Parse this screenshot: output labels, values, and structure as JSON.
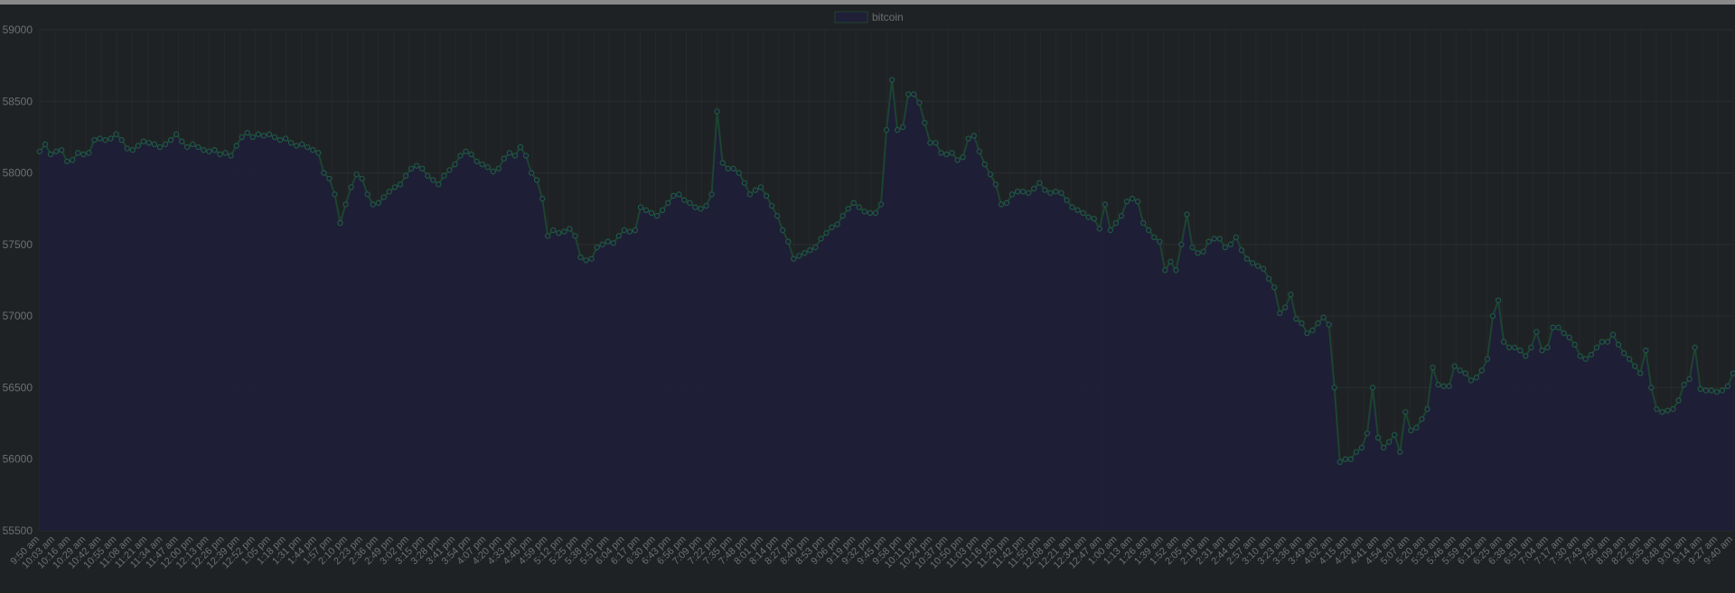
{
  "colors": {
    "background": "#1f2224",
    "fill": "#1f1f38",
    "line": "#1c4430",
    "point": "#1f5a3e",
    "grid": "#2b2e31",
    "text": "#6d6f71"
  },
  "chart_data": {
    "type": "area",
    "title": "",
    "xlabel": "",
    "ylabel": "",
    "legend": {
      "position": "top-center",
      "entries": [
        "bitcoin"
      ]
    },
    "grid": true,
    "ylim": [
      55500,
      59000
    ],
    "yticks": [
      55500,
      56000,
      56500,
      57000,
      57500,
      58000,
      58500,
      59000
    ],
    "x_tick_labels": [
      "9:50 am",
      "10:03 am",
      "10:16 am",
      "10:29 am",
      "10:42 am",
      "10:55 am",
      "11:08 am",
      "11:21 am",
      "11:34 am",
      "11:47 am",
      "12:00 pm",
      "12:13 pm",
      "12:26 pm",
      "12:39 pm",
      "12:52 pm",
      "1:05 pm",
      "1:18 pm",
      "1:31 pm",
      "1:44 pm",
      "1:57 pm",
      "2:10 pm",
      "2:23 pm",
      "2:36 pm",
      "2:49 pm",
      "3:02 pm",
      "3:15 pm",
      "3:28 pm",
      "3:41 pm",
      "3:54 pm",
      "4:07 pm",
      "4:20 pm",
      "4:33 pm",
      "4:46 pm",
      "4:59 pm",
      "5:12 pm",
      "5:25 pm",
      "5:38 pm",
      "5:51 pm",
      "6:04 pm",
      "6:17 pm",
      "6:30 pm",
      "6:43 pm",
      "6:56 pm",
      "7:09 pm",
      "7:22 pm",
      "7:35 pm",
      "7:48 pm",
      "8:01 pm",
      "8:14 pm",
      "8:27 pm",
      "8:40 pm",
      "8:53 pm",
      "9:06 pm",
      "9:19 pm",
      "9:32 pm",
      "9:45 pm",
      "9:58 pm",
      "10:11 pm",
      "10:24 pm",
      "10:37 pm",
      "10:50 pm",
      "11:03 pm",
      "11:16 pm",
      "11:29 pm",
      "11:42 pm",
      "11:55 pm",
      "12:08 am",
      "12:21 am",
      "12:34 am",
      "12:47 am",
      "1:00 am",
      "1:13 am",
      "1:26 am",
      "1:39 am",
      "1:52 am",
      "2:05 am",
      "2:18 am",
      "2:31 am",
      "2:44 am",
      "2:57 am",
      "3:10 am",
      "3:23 am",
      "3:36 am",
      "3:49 am",
      "4:02 am",
      "4:15 am",
      "4:28 am",
      "4:41 am",
      "4:54 am",
      "5:07 am",
      "5:20 am",
      "5:33 am",
      "5:46 am",
      "5:59 am",
      "6:12 am",
      "6:25 am",
      "6:38 am",
      "6:51 am",
      "7:04 am",
      "7:17 am",
      "7:30 am",
      "7:43 am",
      "7:56 am",
      "8:09 am",
      "8:22 am",
      "8:35 am",
      "8:48 am",
      "9:01 am",
      "9:14 am",
      "9:27 am",
      "9:40 am"
    ],
    "series": [
      {
        "name": "bitcoin",
        "values": [
          58150,
          58200,
          58130,
          58150,
          58160,
          58080,
          58090,
          58140,
          58130,
          58140,
          58230,
          58240,
          58230,
          58240,
          58270,
          58230,
          58170,
          58160,
          58190,
          58220,
          58210,
          58200,
          58180,
          58200,
          58230,
          58270,
          58220,
          58180,
          58200,
          58180,
          58160,
          58150,
          58160,
          58130,
          58140,
          58120,
          58190,
          58250,
          58280,
          58250,
          58270,
          58260,
          58270,
          58250,
          58230,
          58240,
          58210,
          58190,
          58200,
          58180,
          58160,
          58140,
          58000,
          57960,
          57850,
          57650,
          57780,
          57900,
          57990,
          57960,
          57850,
          57780,
          57790,
          57830,
          57870,
          57900,
          57920,
          57980,
          58030,
          58050,
          58030,
          57980,
          57950,
          57920,
          57980,
          58020,
          58060,
          58120,
          58150,
          58130,
          58080,
          58060,
          58040,
          58010,
          58030,
          58100,
          58140,
          58120,
          58180,
          58120,
          58000,
          57950,
          57820,
          57560,
          57600,
          57580,
          57590,
          57610,
          57560,
          57410,
          57390,
          57400,
          57480,
          57500,
          57520,
          57510,
          57560,
          57600,
          57590,
          57600,
          57760,
          57740,
          57720,
          57700,
          57740,
          57790,
          57840,
          57850,
          57810,
          57790,
          57760,
          57750,
          57770,
          57850,
          58430,
          58070,
          58030,
          58030,
          58000,
          57930,
          57850,
          57880,
          57900,
          57840,
          57770,
          57700,
          57600,
          57520,
          57400,
          57420,
          57440,
          57460,
          57480,
          57540,
          57580,
          57620,
          57640,
          57700,
          57750,
          57790,
          57760,
          57730,
          57720,
          57720,
          57780,
          58300,
          58650,
          58300,
          58320,
          58550,
          58550,
          58490,
          58350,
          58210,
          58210,
          58140,
          58130,
          58140,
          58090,
          58110,
          58240,
          58260,
          58150,
          58060,
          57990,
          57920,
          57780,
          57790,
          57850,
          57870,
          57870,
          57860,
          57890,
          57930,
          57880,
          57860,
          57870,
          57860,
          57810,
          57760,
          57740,
          57720,
          57690,
          57680,
          57610,
          57780,
          57600,
          57650,
          57700,
          57800,
          57820,
          57800,
          57650,
          57600,
          57550,
          57520,
          57320,
          57380,
          57320,
          57500,
          57710,
          57480,
          57440,
          57450,
          57520,
          57540,
          57540,
          57480,
          57500,
          57550,
          57460,
          57400,
          57370,
          57350,
          57330,
          57260,
          57200,
          57020,
          57060,
          57150,
          56980,
          56950,
          56880,
          56900,
          56950,
          56990,
          56940,
          56500,
          55980,
          56000,
          56000,
          56050,
          56080,
          56180,
          56500,
          56150,
          56080,
          56120,
          56170,
          56050,
          56330,
          56200,
          56220,
          56280,
          56350,
          56640,
          56520,
          56510,
          56510,
          56650,
          56620,
          56600,
          56550,
          56570,
          56620,
          56700,
          57000,
          57110,
          56820,
          56780,
          56780,
          56760,
          56720,
          56780,
          56890,
          56760,
          56780,
          56920,
          56920,
          56880,
          56850,
          56800,
          56720,
          56700,
          56730,
          56780,
          56820,
          56820,
          56870,
          56800,
          56740,
          56700,
          56650,
          56600,
          56760,
          56500,
          56350,
          56330,
          56340,
          56350,
          56410,
          56520,
          56560,
          56780,
          56490,
          56480,
          56480,
          56470,
          56480,
          56510,
          56600
        ]
      }
    ]
  }
}
